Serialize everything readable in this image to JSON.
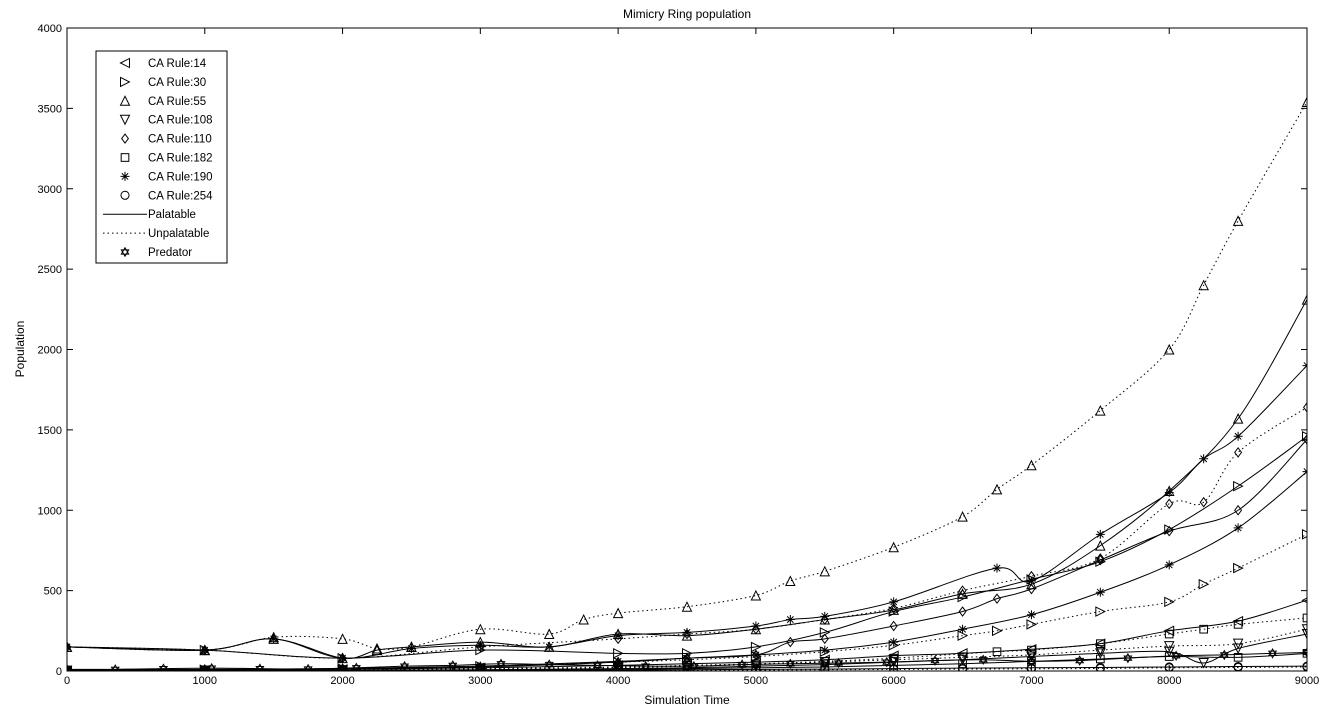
{
  "chart_data": {
    "type": "line",
    "title": "Mimicry Ring population",
    "xlabel": "Simulation Time",
    "ylabel": "Population",
    "xlim": [
      0,
      9000
    ],
    "ylim": [
      0,
      4000
    ],
    "xticks": [
      0,
      1000,
      2000,
      3000,
      4000,
      5000,
      6000,
      7000,
      8000,
      9000
    ],
    "yticks": [
      0,
      500,
      1000,
      1500,
      2000,
      2500,
      3000,
      3500,
      4000
    ],
    "grid": false,
    "legend_position": "top-left",
    "legend": [
      {
        "label": "CA Rule:14",
        "marker": "triangle-left"
      },
      {
        "label": "CA Rule:30",
        "marker": "triangle-right"
      },
      {
        "label": "CA Rule:55",
        "marker": "triangle-up"
      },
      {
        "label": "CA Rule:108",
        "marker": "triangle-down"
      },
      {
        "label": "CA Rule:110",
        "marker": "diamond"
      },
      {
        "label": "CA Rule:182",
        "marker": "square"
      },
      {
        "label": "CA Rule:190",
        "marker": "asterisk"
      },
      {
        "label": "CA Rule:254",
        "marker": "circle"
      },
      {
        "label": "Palatable",
        "line": "solid"
      },
      {
        "label": "Unpalatable",
        "line": "dotted"
      },
      {
        "label": "Predator",
        "marker": "hexagram"
      }
    ],
    "series": [
      {
        "name": "CA Rule:55",
        "style": "dotted",
        "marker": "triangle-up",
        "x": [
          0,
          1000,
          1500,
          2000,
          2250,
          2500,
          3000,
          3500,
          3750,
          4000,
          4500,
          5000,
          5250,
          5500,
          6000,
          6500,
          6750,
          7000,
          7500,
          8000,
          8250,
          8500,
          9000
        ],
        "y": [
          150,
          130,
          210,
          200,
          140,
          150,
          260,
          230,
          320,
          360,
          400,
          470,
          560,
          620,
          770,
          960,
          1130,
          1280,
          1620,
          2000,
          2400,
          2800,
          3540
        ]
      },
      {
        "name": "CA Rule:55",
        "style": "solid",
        "marker": "triangle-up",
        "x": [
          0,
          1000,
          1500,
          2000,
          2250,
          2500,
          3000,
          3500,
          4000,
          4500,
          5000,
          5500,
          6000,
          6500,
          7000,
          7500,
          8000,
          8500,
          9000
        ],
        "y": [
          150,
          130,
          200,
          80,
          130,
          150,
          180,
          150,
          230,
          220,
          260,
          320,
          380,
          480,
          540,
          780,
          1120,
          1570,
          2310
        ]
      },
      {
        "name": "CA Rule:190",
        "style": "solid",
        "marker": "asterisk",
        "x": [
          0,
          1000,
          1500,
          2000,
          2500,
          3000,
          3500,
          4000,
          4500,
          5000,
          5250,
          5500,
          6000,
          6750,
          7000,
          7500,
          8000,
          8250,
          8500,
          9000
        ],
        "y": [
          150,
          130,
          200,
          80,
          140,
          160,
          150,
          220,
          240,
          280,
          320,
          340,
          430,
          640,
          560,
          850,
          1110,
          1320,
          1460,
          1900
        ]
      },
      {
        "name": "CA Rule:110",
        "style": "dotted",
        "marker": "diamond",
        "x": [
          0,
          1000,
          2000,
          3000,
          4000,
          4500,
          5000,
          5500,
          6000,
          6500,
          7000,
          7500,
          8000,
          8250,
          8500,
          9000
        ],
        "y": [
          150,
          130,
          80,
          150,
          200,
          230,
          260,
          320,
          390,
          500,
          590,
          700,
          1040,
          1050,
          1360,
          1640
        ]
      },
      {
        "name": "CA Rule:30",
        "style": "solid",
        "marker": "triangle-right",
        "x": [
          0,
          1000,
          2000,
          3000,
          4000,
          4500,
          5000,
          5500,
          6000,
          6500,
          7000,
          7500,
          8000,
          8500,
          9000
        ],
        "y": [
          150,
          130,
          80,
          130,
          110,
          110,
          150,
          240,
          370,
          460,
          570,
          680,
          880,
          1150,
          1460
        ]
      },
      {
        "name": "CA Rule:110",
        "style": "solid",
        "marker": "diamond",
        "x": [
          0,
          1000,
          2000,
          3000,
          4000,
          4500,
          5000,
          5250,
          5500,
          6000,
          6500,
          6750,
          7000,
          7500,
          8000,
          8500,
          9000
        ],
        "y": [
          10,
          10,
          15,
          25,
          55,
          80,
          100,
          180,
          200,
          280,
          370,
          450,
          510,
          690,
          870,
          1000,
          1440
        ]
      },
      {
        "name": "CA Rule:190",
        "style": "solid",
        "marker": "asterisk",
        "x": [
          0,
          1000,
          2000,
          3000,
          4000,
          4500,
          5000,
          5500,
          6000,
          6500,
          7000,
          7500,
          8000,
          8500,
          9000
        ],
        "y": [
          5,
          8,
          15,
          30,
          60,
          80,
          100,
          130,
          180,
          260,
          350,
          490,
          660,
          890,
          1240
        ]
      },
      {
        "name": "CA Rule:30",
        "style": "dotted",
        "marker": "triangle-right",
        "x": [
          0,
          1000,
          2000,
          3000,
          4000,
          4500,
          5000,
          5500,
          6000,
          6500,
          6750,
          7000,
          7500,
          8000,
          8250,
          8500,
          9000
        ],
        "y": [
          5,
          8,
          15,
          30,
          55,
          70,
          90,
          120,
          160,
          220,
          250,
          290,
          370,
          430,
          540,
          640,
          850
        ]
      },
      {
        "name": "CA Rule:14",
        "style": "solid",
        "marker": "triangle-left",
        "x": [
          0,
          1000,
          2000,
          3000,
          4000,
          4500,
          5000,
          5500,
          6000,
          6500,
          7000,
          7500,
          8000,
          8500,
          9000
        ],
        "y": [
          2,
          5,
          10,
          20,
          35,
          45,
          55,
          70,
          95,
          110,
          135,
          170,
          250,
          310,
          440
        ]
      },
      {
        "name": "CA Rule:182",
        "style": "dotted",
        "marker": "square",
        "x": [
          0,
          1000,
          2000,
          3000,
          4000,
          4500,
          5000,
          5500,
          6000,
          6750,
          7000,
          7500,
          8000,
          8250,
          8500,
          9000
        ],
        "y": [
          2,
          4,
          8,
          15,
          25,
          35,
          45,
          60,
          80,
          120,
          130,
          170,
          230,
          260,
          290,
          330
        ]
      },
      {
        "name": "CA Rule:108",
        "style": "dotted",
        "marker": "triangle-down",
        "x": [
          0,
          1000,
          2000,
          3000,
          4000,
          4500,
          5000,
          5500,
          6000,
          6500,
          7000,
          7500,
          8000,
          8500,
          9000
        ],
        "y": [
          2,
          3,
          5,
          10,
          20,
          30,
          40,
          55,
          70,
          85,
          100,
          130,
          155,
          170,
          260
        ]
      },
      {
        "name": "CA Rule:108",
        "style": "solid",
        "marker": "triangle-down",
        "x": [
          0,
          1000,
          2000,
          3000,
          4000,
          4500,
          5000,
          5500,
          6000,
          6500,
          7000,
          7500,
          8000,
          8250,
          8500,
          9000
        ],
        "y": [
          1,
          2,
          4,
          8,
          15,
          20,
          30,
          40,
          55,
          70,
          90,
          110,
          120,
          50,
          140,
          230
        ]
      },
      {
        "name": "CA Rule:182",
        "style": "solid",
        "marker": "square",
        "x": [
          0,
          1000,
          2000,
          3000,
          4000,
          4500,
          5000,
          5500,
          6000,
          6500,
          7000,
          7500,
          8000,
          8500,
          9000
        ],
        "y": [
          1,
          2,
          3,
          5,
          10,
          15,
          20,
          25,
          35,
          45,
          60,
          75,
          90,
          85,
          110
        ]
      },
      {
        "name": "CA Rule:254",
        "style": "solid",
        "marker": "circle",
        "x": [
          0,
          1000,
          2000,
          3000,
          4000,
          4500,
          5000,
          5500,
          6000,
          6500,
          7000,
          7500,
          8000,
          8500,
          9000
        ],
        "y": [
          1,
          1,
          2,
          3,
          5,
          8,
          10,
          12,
          15,
          18,
          20,
          22,
          25,
          28,
          30
        ]
      },
      {
        "name": "CA Rule:254",
        "style": "dotted",
        "marker": "circle",
        "x": [
          0,
          1000,
          2000,
          3000,
          4000,
          4500,
          5000,
          5500,
          6000,
          6500,
          7000,
          7500,
          8000,
          8500,
          9000
        ],
        "y": [
          1,
          1,
          2,
          3,
          4,
          5,
          6,
          8,
          10,
          12,
          14,
          16,
          20,
          22,
          25
        ]
      },
      {
        "name": "Predator",
        "style": "solid",
        "marker": "hexagram",
        "x": [
          0,
          350,
          700,
          1050,
          1400,
          1750,
          2100,
          2450,
          2800,
          3150,
          3500,
          3850,
          4200,
          4550,
          4900,
          5250,
          5600,
          5950,
          6300,
          6650,
          7000,
          7350,
          7700,
          8050,
          8400,
          8750,
          9000
        ],
        "y": [
          5,
          10,
          15,
          18,
          15,
          12,
          20,
          30,
          35,
          45,
          40,
          35,
          30,
          30,
          40,
          45,
          50,
          55,
          65,
          70,
          60,
          65,
          80,
          95,
          100,
          110,
          115
        ]
      }
    ]
  }
}
